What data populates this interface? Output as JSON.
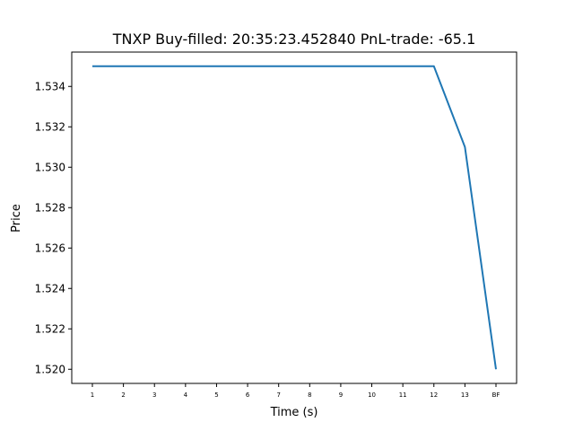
{
  "chart_data": {
    "type": "line",
    "title": "TNXP  Buy-filled:  20:35:23.452840  PnL-trade:  -65.1",
    "xlabel": "Time (s)",
    "ylabel": "Price",
    "categories": [
      "1",
      "2",
      "3",
      "4",
      "5",
      "6",
      "7",
      "8",
      "9",
      "10",
      "11",
      "12",
      "13",
      "BF"
    ],
    "series": [
      {
        "values": [
          1.535,
          1.535,
          1.535,
          1.535,
          1.535,
          1.535,
          1.535,
          1.535,
          1.535,
          1.535,
          1.535,
          1.535,
          1.531,
          1.52
        ],
        "color": "#1f77b4"
      }
    ],
    "ylim": [
      1.5193,
      1.5357
    ],
    "yticks": [
      "1.520",
      "1.522",
      "1.524",
      "1.526",
      "1.528",
      "1.530",
      "1.532",
      "1.534"
    ],
    "grid": false,
    "legend": "none"
  }
}
